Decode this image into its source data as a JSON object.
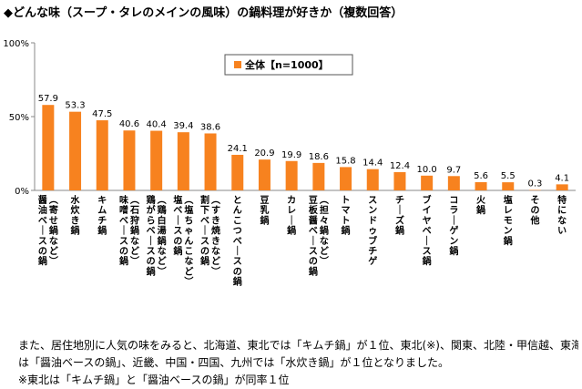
{
  "title": "◆どんな味（スープ・タレのメインの風味）の鍋料理が好きか（複数回答）",
  "chart_data": {
    "type": "bar",
    "ylim": [
      0,
      100
    ],
    "yticks": [
      "0%",
      "50%",
      "100%"
    ],
    "grid": false,
    "legend_position": "top-center",
    "series": [
      {
        "name": "全体【n=1000】",
        "color": "#f7821f",
        "values": [
          57.9,
          53.3,
          47.5,
          40.6,
          40.4,
          39.4,
          38.6,
          24.1,
          20.9,
          19.9,
          18.6,
          15.8,
          14.4,
          12.4,
          10.0,
          9.7,
          5.6,
          5.5,
          0.3,
          4.1
        ]
      }
    ],
    "categories": [
      "醤油ベースの鍋（寄せ鍋など）",
      "水炊き鍋",
      "キムチ鍋",
      "味噌ベースの鍋（石狩鍋など）",
      "鶏がらベースの鍋（鶏白湯鍋など）",
      "塩ベースの鍋（塩ちゃんこなど）",
      "割下ベースの鍋（すき焼きなど）",
      "とんこつベースの鍋",
      "豆乳鍋",
      "カレー鍋",
      "豆板醤ベースの鍋（担々鍋など）",
      "トマト鍋",
      "スンドゥブチゲ",
      "チーズ鍋",
      "ブイヤベース鍋",
      "コラーゲン鍋",
      "火鍋",
      "塩レモン鍋",
      "その他",
      "特にない"
    ],
    "value_labels": [
      "57.9",
      "53.3",
      "47.5",
      "40.6",
      "40.4",
      "39.4",
      "38.6",
      "24.1",
      "20.9",
      "19.9",
      "18.6",
      "15.8",
      "14.4",
      "12.4",
      "10.0",
      "9.7",
      "5.6",
      "5.5",
      "0.3",
      "4.1"
    ]
  },
  "body_text": {
    "line1": "また、居住地別に人気の味をみると、北海道、東北では「キムチ鍋」が１位、東北(※)、関東、北陸・甲信越、東海で",
    "line2": "は「醤油ベースの鍋」、近畿、中国・四国、九州では「水炊き鍋」が１位となりました。",
    "line3": "※東北は「キムチ鍋」と「醤油ベースの鍋」が同率１位"
  }
}
